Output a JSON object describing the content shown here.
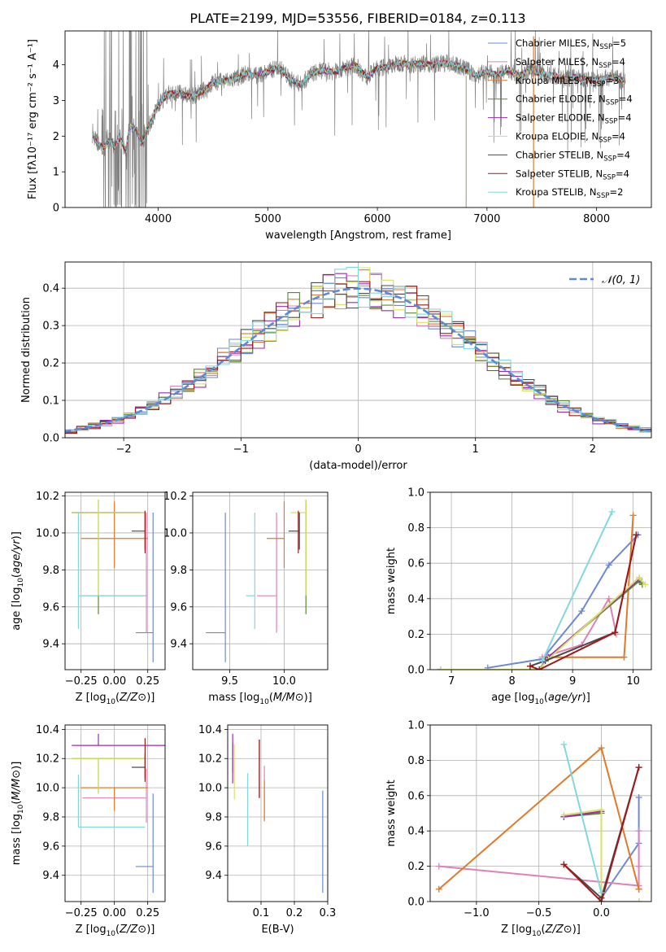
{
  "title": "PLATE=2199, MJD=53556, FIBERID=0184, z=0.113",
  "colors": {
    "Chabrier MILES": "#6a8ad8",
    "Salpeter MILES": "#e080b8",
    "Kroupa MILES": "#e07a2a",
    "Chabrier ELODIE": "#5a8a3a",
    "Salpeter ELODIE": "#9a2ab8",
    "Kroupa ELODIE": "#d8e060",
    "Chabrier STELIB": "#4a4a4a",
    "Salpeter STELIB": "#a01818",
    "Kroupa STELIB": "#80d8e0",
    "observed": "#808080",
    "normal": "#5a8ad8"
  },
  "chart_data": [
    {
      "id": "spectrum",
      "type": "line",
      "xlabel": "wavelength [Angstrom, rest frame]",
      "ylabel": "Flux [f_λ 10^-17 erg cm^-2 s^-1 A^-1]",
      "xlim": [
        3150,
        8500
      ],
      "ylim": [
        0,
        4.95
      ],
      "xticks": [
        4000,
        5000,
        6000,
        7000,
        8000
      ],
      "yticks": [
        0,
        1,
        2,
        3,
        4
      ],
      "legend_position": "upper-right",
      "legend": [
        "Chabrier MILES, N_SSP=5",
        "Salpeter MILES, N_SSP=4",
        "Kroupa MILES, N_SSP=3",
        "Chabrier ELODIE, N_SSP=4",
        "Salpeter ELODIE, N_SSP=4",
        "Kroupa ELODIE, N_SSP=4",
        "Chabrier STELIB, N_SSP=4",
        "Salpeter STELIB, N_SSP=4",
        "Kroupa STELIB, N_SSP=2"
      ],
      "continuum": [
        [
          3400,
          2.05
        ],
        [
          3450,
          1.8
        ],
        [
          3500,
          1.65
        ],
        [
          3550,
          1.9
        ],
        [
          3600,
          1.7
        ],
        [
          3650,
          1.95
        ],
        [
          3700,
          1.6
        ],
        [
          3750,
          2.3
        ],
        [
          3800,
          2.2
        ],
        [
          3850,
          1.8
        ],
        [
          3900,
          2.2
        ],
        [
          3950,
          2.5
        ],
        [
          4000,
          2.9
        ],
        [
          4100,
          3.2
        ],
        [
          4200,
          3.2
        ],
        [
          4300,
          3.1
        ],
        [
          4400,
          3.25
        ],
        [
          4500,
          3.5
        ],
        [
          4600,
          3.55
        ],
        [
          4700,
          3.6
        ],
        [
          4800,
          3.75
        ],
        [
          4900,
          3.7
        ],
        [
          5000,
          3.8
        ],
        [
          5100,
          3.95
        ],
        [
          5200,
          3.6
        ],
        [
          5300,
          3.45
        ],
        [
          5400,
          3.75
        ],
        [
          5500,
          3.85
        ],
        [
          5600,
          3.8
        ],
        [
          5700,
          3.9
        ],
        [
          5800,
          4.0
        ],
        [
          5900,
          3.65
        ],
        [
          6000,
          3.9
        ],
        [
          6100,
          3.95
        ],
        [
          6200,
          4.05
        ],
        [
          6300,
          4.0
        ],
        [
          6400,
          4.05
        ],
        [
          6500,
          4.0
        ],
        [
          6600,
          4.05
        ],
        [
          6700,
          4.0
        ],
        [
          6800,
          3.9
        ],
        [
          6900,
          3.7
        ],
        [
          7000,
          3.8
        ],
        [
          7100,
          3.7
        ],
        [
          7200,
          3.85
        ],
        [
          7300,
          3.7
        ],
        [
          7400,
          3.85
        ],
        [
          7500,
          3.75
        ],
        [
          7600,
          3.7
        ],
        [
          7700,
          3.6
        ],
        [
          7800,
          3.65
        ],
        [
          7900,
          3.6
        ],
        [
          8000,
          3.55
        ],
        [
          8100,
          3.65
        ],
        [
          8200,
          3.6
        ],
        [
          8260,
          3.55
        ]
      ]
    },
    {
      "id": "residual-hist",
      "type": "bar",
      "xlabel": "(data-model)/error",
      "ylabel": "Normed distribution",
      "xlim": [
        -2.5,
        2.5
      ],
      "ylim": [
        0,
        0.47
      ],
      "xticks": [
        -2,
        -1,
        0,
        1,
        2
      ],
      "yticks": [
        0.0,
        0.1,
        0.2,
        0.3,
        0.4
      ],
      "legend": [
        "N(0, 1)"
      ],
      "legend_position": "upper-right",
      "bin_width": 0.1
    },
    {
      "id": "age-vs-Z",
      "type": "scatter",
      "xlabel": "Z [log10(Z/Z⊙)]",
      "ylabel": "age  [log10(age/yr)]",
      "xlim": [
        -0.37,
        0.38
      ],
      "ylim": [
        9.26,
        10.22
      ],
      "xticks": [
        -0.25,
        0.0,
        0.25
      ],
      "yticks": [
        9.4,
        9.6,
        9.8,
        10.0,
        10.2
      ],
      "points": [
        {
          "name": "Chabrier MILES",
          "x": 0.29,
          "y": 9.46,
          "xerr": [
            0.13,
            0.0
          ],
          "yerr": [
            0.16,
            0.65
          ]
        },
        {
          "name": "Salpeter MILES",
          "x": 0.24,
          "y": 9.66,
          "xerr": [
            0.48,
            0.0
          ],
          "yerr": [
            0.2,
            0.45
          ]
        },
        {
          "name": "Kroupa MILES",
          "x": 0.0,
          "y": 9.97,
          "xerr": [
            0.25,
            0.25
          ],
          "yerr": [
            0.16,
            0.2
          ]
        },
        {
          "name": "Chabrier ELODIE",
          "x": -0.12,
          "y": 10.11,
          "xerr": [
            0.2,
            0.35
          ],
          "yerr": [
            0.55,
            0.07
          ]
        },
        {
          "name": "Salpeter ELODIE",
          "x": 0.2,
          "y": 10.11,
          "xerr": [
            0.52,
            0.0
          ],
          "yerr": [
            0.0,
            0.0
          ]
        },
        {
          "name": "Kroupa ELODIE",
          "x": -0.12,
          "y": 10.11,
          "xerr": [
            0.2,
            0.35
          ],
          "yerr": [
            0.45,
            0.07
          ]
        },
        {
          "name": "Chabrier STELIB",
          "x": 0.23,
          "y": 10.01,
          "xerr": [
            0.1,
            0.0
          ],
          "yerr": [
            0.1,
            0.1
          ]
        },
        {
          "name": "Salpeter STELIB",
          "x": 0.23,
          "y": 9.99,
          "xerr": [
            0.0,
            0.0
          ],
          "yerr": [
            0.1,
            0.13
          ]
        },
        {
          "name": "Kroupa STELIB",
          "x": -0.27,
          "y": 9.66,
          "xerr": [
            0.0,
            0.5
          ],
          "yerr": [
            0.18,
            0.45
          ]
        }
      ]
    },
    {
      "id": "age-vs-mass",
      "type": "scatter",
      "xlabel": "mass [log10(M/M⊙)]",
      "ylabel": "",
      "xlim": [
        9.16,
        10.4
      ],
      "ylim": [
        9.26,
        10.22
      ],
      "xticks": [
        9.5,
        10.0
      ],
      "yticks": [
        9.4,
        9.6,
        9.8,
        10.0,
        10.2
      ],
      "points": [
        {
          "name": "Chabrier MILES",
          "x": 9.46,
          "y": 9.46,
          "xerr": [
            0.18,
            0.0
          ],
          "yerr": [
            0.16,
            0.65
          ]
        },
        {
          "name": "Salpeter MILES",
          "x": 9.93,
          "y": 9.66,
          "xerr": [
            0.18,
            0.0
          ],
          "yerr": [
            0.2,
            0.45
          ]
        },
        {
          "name": "Kroupa MILES",
          "x": 10.0,
          "y": 9.97,
          "xerr": [
            0.16,
            0.0
          ],
          "yerr": [
            0.16,
            0.2
          ]
        },
        {
          "name": "Chabrier ELODIE",
          "x": 10.2,
          "y": 10.11,
          "xerr": [
            0.0,
            0.0
          ],
          "yerr": [
            0.55,
            0.07
          ]
        },
        {
          "name": "Salpeter ELODIE",
          "x": 10.29,
          "y": 10.11,
          "xerr": [
            0.0,
            0.0
          ],
          "yerr": [
            0.0,
            0.0
          ]
        },
        {
          "name": "Kroupa ELODIE",
          "x": 10.2,
          "y": 10.11,
          "xerr": [
            0.14,
            0.0
          ],
          "yerr": [
            0.45,
            0.07
          ]
        },
        {
          "name": "Chabrier STELIB",
          "x": 10.14,
          "y": 10.01,
          "xerr": [
            0.1,
            0.0
          ],
          "yerr": [
            0.1,
            0.1
          ]
        },
        {
          "name": "Salpeter STELIB",
          "x": 10.13,
          "y": 9.99,
          "xerr": [
            0.0,
            0.0
          ],
          "yerr": [
            0.1,
            0.13
          ]
        },
        {
          "name": "Kroupa STELIB",
          "x": 9.73,
          "y": 9.66,
          "xerr": [
            0.08,
            0.0
          ],
          "yerr": [
            0.18,
            0.45
          ]
        }
      ]
    },
    {
      "id": "weight-vs-age",
      "type": "line",
      "xlabel": "age  [log10(age/yr)]",
      "ylabel": "mass weight",
      "xlim": [
        6.65,
        10.3
      ],
      "ylim": [
        0.0,
        1.0
      ],
      "xticks": [
        7,
        8,
        9,
        10
      ],
      "yticks": [
        0.0,
        0.2,
        0.4,
        0.6,
        0.8,
        1.0
      ],
      "series": [
        {
          "name": "Chabrier MILES",
          "x": [
            7.6,
            8.5,
            9.15,
            9.6,
            10.08
          ],
          "y": [
            0.01,
            0.06,
            0.33,
            0.59,
            0.76
          ]
        },
        {
          "name": "Salpeter MILES",
          "x": [
            8.5,
            9.15,
            9.6,
            9.72
          ],
          "y": [
            0.07,
            0.14,
            0.4,
            0.2
          ]
        },
        {
          "name": "Kroupa MILES",
          "x": [
            8.6,
            9.85,
            10.0
          ],
          "y": [
            0.07,
            0.07,
            0.87
          ]
        },
        {
          "name": "Chabrier ELODIE",
          "x": [
            6.82,
            8.45,
            8.6,
            10.1,
            10.15
          ],
          "y": [
            0.0,
            0.0,
            0.07,
            0.5,
            0.48
          ]
        },
        {
          "name": "Salpeter ELODIE",
          "x": [
            6.82,
            8.45,
            8.6,
            10.1
          ],
          "y": [
            0.0,
            0.0,
            0.07,
            0.51
          ]
        },
        {
          "name": "Kroupa ELODIE",
          "x": [
            6.82,
            8.45,
            8.6,
            10.1,
            10.2
          ],
          "y": [
            0.0,
            0.0,
            0.06,
            0.52,
            0.48
          ]
        },
        {
          "name": "Chabrier STELIB",
          "x": [
            8.3,
            8.55,
            9.7,
            10.05
          ],
          "y": [
            0.02,
            0.05,
            0.21,
            0.76
          ]
        },
        {
          "name": "Salpeter STELIB",
          "x": [
            8.3,
            8.45,
            9.7,
            10.05
          ],
          "y": [
            0.02,
            0.0,
            0.21,
            0.76
          ]
        },
        {
          "name": "Kroupa STELIB",
          "x": [
            8.5,
            9.65
          ],
          "y": [
            0.05,
            0.89
          ]
        }
      ]
    },
    {
      "id": "mass-vs-Z",
      "type": "scatter",
      "xlabel": "Z [log10(Z/Z⊙)]",
      "ylabel": "mass [log10(M/M⊙)]",
      "xlim": [
        -0.37,
        0.38
      ],
      "ylim": [
        9.22,
        10.43
      ],
      "xticks": [
        -0.25,
        0.0,
        0.25
      ],
      "yticks": [
        9.4,
        9.6,
        9.8,
        10.0,
        10.2,
        10.4
      ],
      "points": [
        {
          "name": "Chabrier MILES",
          "x": 0.29,
          "y": 9.46,
          "xerr": [
            0.13,
            0.0
          ],
          "yerr": [
            0.18,
            0.5
          ]
        },
        {
          "name": "Salpeter MILES",
          "x": 0.24,
          "y": 9.93,
          "xerr": [
            0.48,
            0.0
          ],
          "yerr": [
            0.17,
            0.2
          ]
        },
        {
          "name": "Kroupa MILES",
          "x": 0.0,
          "y": 10.0,
          "xerr": [
            0.25,
            0.25
          ],
          "yerr": [
            0.16,
            0.0
          ]
        },
        {
          "name": "Chabrier ELODIE",
          "x": -0.12,
          "y": 10.2,
          "xerr": [
            0.2,
            0.35
          ],
          "yerr": [
            0.24,
            0.0
          ]
        },
        {
          "name": "Salpeter ELODIE",
          "x": -0.12,
          "y": 10.29,
          "xerr": [
            0.2,
            0.5
          ],
          "yerr": [
            0.0,
            0.08
          ]
        },
        {
          "name": "Kroupa ELODIE",
          "x": -0.12,
          "y": 10.2,
          "xerr": [
            0.2,
            0.35
          ],
          "yerr": [
            0.24,
            0.0
          ]
        },
        {
          "name": "Chabrier STELIB",
          "x": 0.23,
          "y": 10.14,
          "xerr": [
            0.1,
            0.0
          ],
          "yerr": [
            0.1,
            0.1
          ]
        },
        {
          "name": "Salpeter STELIB",
          "x": 0.23,
          "y": 10.2,
          "xerr": [
            0.0,
            0.0
          ],
          "yerr": [
            0.14,
            0.14
          ]
        },
        {
          "name": "Kroupa STELIB",
          "x": -0.27,
          "y": 9.73,
          "xerr": [
            0.0,
            0.5
          ],
          "yerr": [
            0.0,
            0.36
          ]
        }
      ]
    },
    {
      "id": "mass-vs-EBV",
      "type": "scatter",
      "xlabel": "E(B-V)",
      "ylabel": "",
      "xlim": [
        0.0,
        0.3
      ],
      "ylim": [
        9.22,
        10.43
      ],
      "xticks": [
        0.1,
        0.2,
        0.3
      ],
      "yticks": [
        9.4,
        9.6,
        9.8,
        10.0,
        10.2,
        10.4
      ],
      "points": [
        {
          "name": "Chabrier MILES",
          "x": 0.285,
          "y": 9.6,
          "yerr": [
            0.32,
            0.38
          ]
        },
        {
          "name": "Salpeter MILES",
          "x": 0.11,
          "y": 9.95,
          "yerr": [
            0.17,
            0.2
          ]
        },
        {
          "name": "Kroupa MILES",
          "x": 0.11,
          "y": 9.95,
          "yerr": [
            0.18,
            0.1
          ]
        },
        {
          "name": "Chabrier ELODIE",
          "x": 0.015,
          "y": 10.2,
          "yerr": [
            0.1,
            0.1
          ]
        },
        {
          "name": "Salpeter ELODIE",
          "x": 0.015,
          "y": 10.2,
          "yerr": [
            0.17,
            0.17
          ]
        },
        {
          "name": "Kroupa ELODIE",
          "x": 0.02,
          "y": 10.1,
          "yerr": [
            0.18,
            0.2
          ]
        },
        {
          "name": "Chabrier STELIB",
          "x": 0.095,
          "y": 10.13,
          "yerr": [
            0.2,
            0.2
          ]
        },
        {
          "name": "Salpeter STELIB",
          "x": 0.095,
          "y": 10.13,
          "yerr": [
            0.2,
            0.2
          ]
        },
        {
          "name": "Kroupa STELIB",
          "x": 0.06,
          "y": 9.85,
          "yerr": [
            0.25,
            0.25
          ]
        }
      ]
    },
    {
      "id": "weight-vs-Z",
      "type": "line",
      "xlabel": "Z [log10(Z/Z⊙)]",
      "ylabel": "mass weight",
      "xlim": [
        -1.37,
        0.4
      ],
      "ylim": [
        0.0,
        1.0
      ],
      "xticks": [
        -1.0,
        -0.5,
        0.0
      ],
      "yticks": [
        0.0,
        0.2,
        0.4,
        0.6,
        0.8,
        1.0
      ],
      "series": [
        {
          "name": "Chabrier MILES",
          "x": [
            0.0,
            0.3,
            0.3
          ],
          "y": [
            0.02,
            0.33,
            0.59
          ]
        },
        {
          "name": "Salpeter MILES",
          "x": [
            -1.3,
            0.3,
            0.3,
            0.3
          ],
          "y": [
            0.2,
            0.09,
            0.4,
            0.2
          ]
        },
        {
          "name": "Kroupa MILES",
          "x": [
            -1.3,
            0.0,
            0.3,
            0.3
          ],
          "y": [
            0.07,
            0.87,
            0.07,
            0.07
          ]
        },
        {
          "name": "Chabrier ELODIE",
          "x": [
            -0.3,
            0.0,
            0.0,
            0.3
          ],
          "y": [
            0.48,
            0.5,
            0.0,
            0.0
          ]
        },
        {
          "name": "Salpeter ELODIE",
          "x": [
            -0.3,
            0.0,
            0.0
          ],
          "y": [
            0.48,
            0.51,
            0.0
          ]
        },
        {
          "name": "Kroupa ELODIE",
          "x": [
            -0.3,
            0.0,
            0.0,
            0.3
          ],
          "y": [
            0.49,
            0.52,
            0.0,
            0.0
          ]
        },
        {
          "name": "Chabrier STELIB",
          "x": [
            -0.3,
            0.0,
            0.3
          ],
          "y": [
            0.21,
            0.02,
            0.76
          ]
        },
        {
          "name": "Salpeter STELIB",
          "x": [
            -0.3,
            0.0,
            0.3
          ],
          "y": [
            0.21,
            0.0,
            0.76
          ]
        },
        {
          "name": "Kroupa STELIB",
          "x": [
            -0.3,
            0.0
          ],
          "y": [
            0.89,
            0.05
          ]
        }
      ]
    }
  ]
}
